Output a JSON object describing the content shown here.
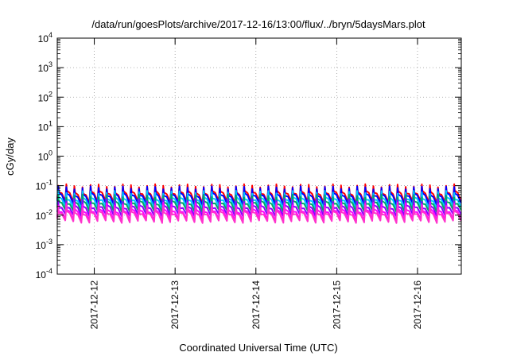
{
  "chart_data": {
    "type": "line",
    "title": "/data/run/goesPlots/archive/2017-12-16/13:00/flux/../bryn/5daysMars.plot",
    "xlabel": "Coordinated Universal Time (UTC)",
    "ylabel": "cGy/day",
    "yscale": "log",
    "ylim": [
      0.0001,
      10000
    ],
    "y_ticks": [
      {
        "base": "10",
        "exp": "-4"
      },
      {
        "base": "10",
        "exp": "-3"
      },
      {
        "base": "10",
        "exp": "-2"
      },
      {
        "base": "10",
        "exp": "-1"
      },
      {
        "base": "10",
        "exp": "0"
      },
      {
        "base": "10",
        "exp": "1"
      },
      {
        "base": "10",
        "exp": "2"
      },
      {
        "base": "10",
        "exp": "3"
      },
      {
        "base": "10",
        "exp": "4"
      }
    ],
    "x_ticks": [
      "2017-12-12",
      "2017-12-13",
      "2017-12-14",
      "2017-12-15",
      "2017-12-16"
    ],
    "xlim": [
      "2017-12-11T13:00",
      "2017-12-16T13:00"
    ],
    "grid": true,
    "series": [
      {
        "color": "#ff0000",
        "peak": 0.1,
        "trough": 0.028
      },
      {
        "color": "#0000ff",
        "peak": 0.085,
        "trough": 0.024
      },
      {
        "color": "#00c8ff",
        "peak": 0.06,
        "trough": 0.018
      },
      {
        "color": "#00aa66",
        "peak": 0.045,
        "trough": 0.014
      },
      {
        "color": "#8800ff",
        "peak": 0.032,
        "trough": 0.01
      },
      {
        "color": "#ff00ff",
        "peak": 0.024,
        "trough": 0.007
      },
      {
        "color": "#ff33cc",
        "peak": 0.02,
        "trough": 0.006
      }
    ],
    "cycles_per_day": 10
  }
}
